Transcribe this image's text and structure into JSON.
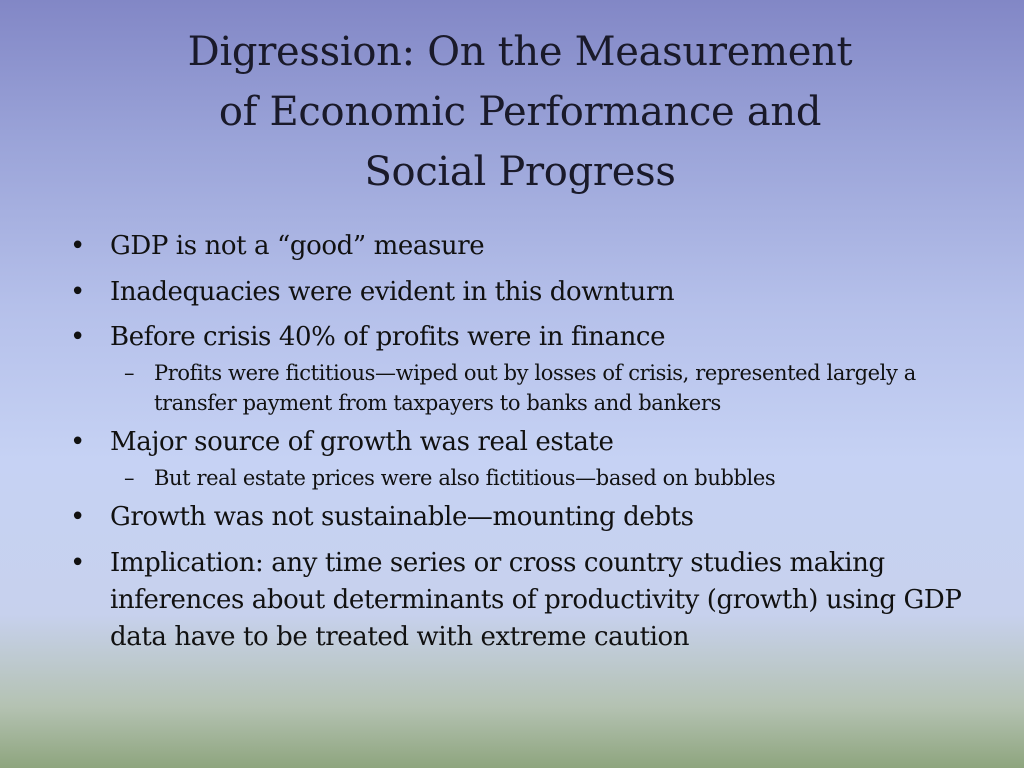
{
  "slide": {
    "title_lines": [
      "Digression:  On the Measurement",
      "of Economic Performance and",
      "Social Progress"
    ],
    "bullets": [
      "GDP is not a “good” measure",
      "Inadequacies were evident in this downturn",
      "Before crisis 40% of profits were in finance",
      "Major source of growth was real estate",
      "Growth was not sustainable—mounting debts",
      "Implication:  any time series or cross country studies making inferences about determinants of productivity (growth) using GDP data have to be treated with extreme caution"
    ],
    "sub_bullets": [
      "Profits were fictitious—wiped out by losses of crisis, represented largely a transfer payment from taxpayers to banks and bankers",
      "But real estate prices were also fictitious—based on bubbles"
    ],
    "bullet_glyph": "•",
    "dash_glyph": "–"
  }
}
